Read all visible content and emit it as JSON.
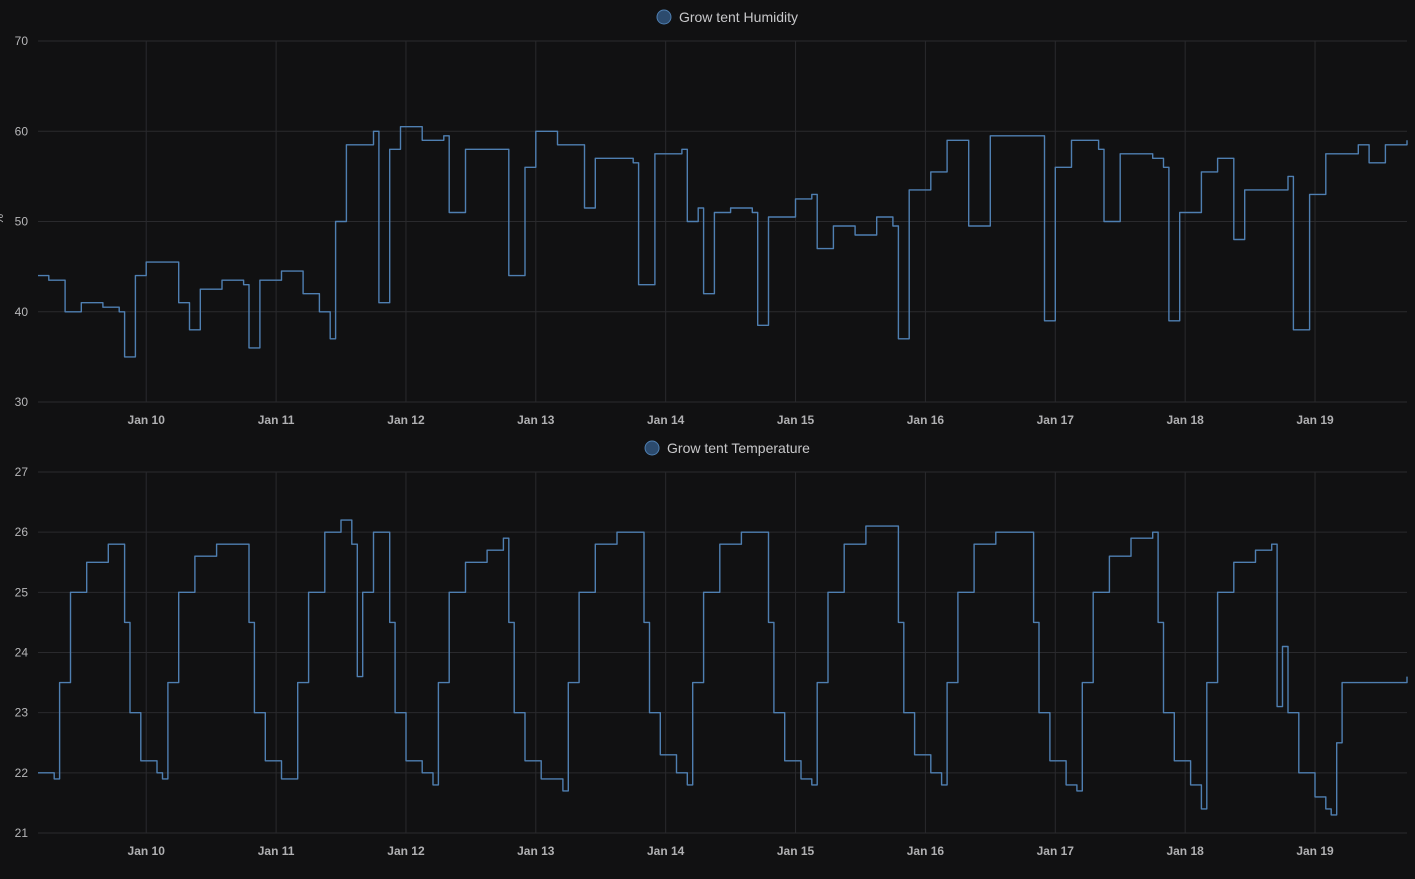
{
  "chart_data": [
    {
      "type": "line",
      "legend": "Grow tent Humidity",
      "legend_placement": "top-center",
      "ylabel": "%",
      "ylim": [
        30,
        70
      ],
      "yticks": [
        "30",
        "40",
        "50",
        "60",
        "70"
      ],
      "xlim": [
        "Jan 9 04:00",
        "Jan 19 17:00"
      ],
      "xticks": [
        "Jan 10",
        "Jan 11",
        "Jan 12",
        "Jan 13",
        "Jan 14",
        "Jan 15",
        "Jan 16",
        "Jan 17",
        "Jan 18",
        "Jan 19"
      ],
      "grid": true,
      "color": "#4f7fb1",
      "series": [
        {
          "name": "Grow tent Humidity",
          "points": [
            [
              "Jan 9 04:00",
              44.0
            ],
            [
              "Jan 9 06:00",
              43.5
            ],
            [
              "Jan 9 09:00",
              40.0
            ],
            [
              "Jan 9 12:00",
              41.0
            ],
            [
              "Jan 9 16:00",
              40.5
            ],
            [
              "Jan 9 19:00",
              40.0
            ],
            [
              "Jan 9 20:00",
              35.0
            ],
            [
              "Jan 9 22:00",
              44.0
            ],
            [
              "Jan 10 00:00",
              45.5
            ],
            [
              "Jan 10 03:00",
              45.5
            ],
            [
              "Jan 10 06:00",
              41.0
            ],
            [
              "Jan 10 08:00",
              38.0
            ],
            [
              "Jan 10 10:00",
              42.5
            ],
            [
              "Jan 10 14:00",
              43.5
            ],
            [
              "Jan 10 18:00",
              43.0
            ],
            [
              "Jan 10 19:00",
              36.0
            ],
            [
              "Jan 10 21:00",
              43.5
            ],
            [
              "Jan 11 01:00",
              44.5
            ],
            [
              "Jan 11 05:00",
              42.0
            ],
            [
              "Jan 11 08:00",
              40.0
            ],
            [
              "Jan 11 10:00",
              37.0
            ],
            [
              "Jan 11 11:00",
              50.0
            ],
            [
              "Jan 11 13:00",
              58.5
            ],
            [
              "Jan 11 18:00",
              60.0
            ],
            [
              "Jan 11 19:00",
              41.0
            ],
            [
              "Jan 11 21:00",
              58.0
            ],
            [
              "Jan 11 23:00",
              60.5
            ],
            [
              "Jan 12 03:00",
              59.0
            ],
            [
              "Jan 12 07:00",
              59.5
            ],
            [
              "Jan 12 08:00",
              51.0
            ],
            [
              "Jan 12 11:00",
              58.0
            ],
            [
              "Jan 12 18:00",
              58.0
            ],
            [
              "Jan 12 19:00",
              44.0
            ],
            [
              "Jan 12 22:00",
              56.0
            ],
            [
              "Jan 13 00:00",
              60.0
            ],
            [
              "Jan 13 04:00",
              58.5
            ],
            [
              "Jan 13 08:00",
              58.5
            ],
            [
              "Jan 13 09:00",
              51.5
            ],
            [
              "Jan 13 11:00",
              57.0
            ],
            [
              "Jan 13 18:00",
              56.5
            ],
            [
              "Jan 13 19:00",
              43.0
            ],
            [
              "Jan 13 22:00",
              57.5
            ],
            [
              "Jan 14 03:00",
              58.0
            ],
            [
              "Jan 14 04:00",
              50.0
            ],
            [
              "Jan 14 06:00",
              51.5
            ],
            [
              "Jan 14 07:00",
              42.0
            ],
            [
              "Jan 14 09:00",
              51.0
            ],
            [
              "Jan 14 12:00",
              51.5
            ],
            [
              "Jan 14 16:00",
              51.0
            ],
            [
              "Jan 14 17:00",
              38.5
            ],
            [
              "Jan 14 19:00",
              50.5
            ],
            [
              "Jan 15 00:00",
              52.5
            ],
            [
              "Jan 15 03:00",
              53.0
            ],
            [
              "Jan 15 04:00",
              47.0
            ],
            [
              "Jan 15 07:00",
              49.5
            ],
            [
              "Jan 15 11:00",
              48.5
            ],
            [
              "Jan 15 15:00",
              50.5
            ],
            [
              "Jan 15 18:00",
              49.5
            ],
            [
              "Jan 15 19:00",
              37.0
            ],
            [
              "Jan 15 21:00",
              53.5
            ],
            [
              "Jan 16 01:00",
              55.5
            ],
            [
              "Jan 16 04:00",
              59.0
            ],
            [
              "Jan 16 08:00",
              49.5
            ],
            [
              "Jan 16 12:00",
              59.5
            ],
            [
              "Jan 16 20:00",
              59.5
            ],
            [
              "Jan 16 22:00",
              39.0
            ],
            [
              "Jan 17 00:00",
              56.0
            ],
            [
              "Jan 17 03:00",
              59.0
            ],
            [
              "Jan 17 08:00",
              58.0
            ],
            [
              "Jan 17 09:00",
              50.0
            ],
            [
              "Jan 17 12:00",
              57.5
            ],
            [
              "Jan 17 18:00",
              57.0
            ],
            [
              "Jan 17 20:00",
              56.0
            ],
            [
              "Jan 17 21:00",
              39.0
            ],
            [
              "Jan 17 23:00",
              51.0
            ],
            [
              "Jan 18 03:00",
              55.5
            ],
            [
              "Jan 18 06:00",
              57.0
            ],
            [
              "Jan 18 09:00",
              48.0
            ],
            [
              "Jan 18 11:00",
              53.5
            ],
            [
              "Jan 18 16:00",
              53.5
            ],
            [
              "Jan 18 19:00",
              55.0
            ],
            [
              "Jan 18 20:00",
              38.0
            ],
            [
              "Jan 18 23:00",
              53.0
            ],
            [
              "Jan 19 02:00",
              57.5
            ],
            [
              "Jan 19 08:00",
              58.5
            ],
            [
              "Jan 19 10:00",
              56.5
            ],
            [
              "Jan 19 13:00",
              58.5
            ],
            [
              "Jan 19 17:00",
              59.0
            ]
          ]
        }
      ]
    },
    {
      "type": "line",
      "legend": "Grow tent Temperature",
      "legend_placement": "top-center",
      "ylabel": "°",
      "ylim": [
        21,
        27
      ],
      "yticks": [
        "21",
        "22",
        "23",
        "24",
        "25",
        "26",
        "27"
      ],
      "xlim": [
        "Jan 9 04:00",
        "Jan 19 17:00"
      ],
      "xticks": [
        "Jan 10",
        "Jan 11",
        "Jan 12",
        "Jan 13",
        "Jan 14",
        "Jan 15",
        "Jan 16",
        "Jan 17",
        "Jan 18",
        "Jan 19"
      ],
      "grid": true,
      "color": "#4f7fb1",
      "series": [
        {
          "name": "Grow tent Temperature",
          "points": [
            [
              "Jan 9 04:00",
              22.0
            ],
            [
              "Jan 9 07:00",
              21.9
            ],
            [
              "Jan 9 08:00",
              23.5
            ],
            [
              "Jan 9 10:00",
              25.0
            ],
            [
              "Jan 9 13:00",
              25.5
            ],
            [
              "Jan 9 17:00",
              25.8
            ],
            [
              "Jan 9 19:00",
              25.8
            ],
            [
              "Jan 9 20:00",
              24.5
            ],
            [
              "Jan 9 21:00",
              23.0
            ],
            [
              "Jan 9 23:00",
              22.2
            ],
            [
              "Jan 10 02:00",
              22.0
            ],
            [
              "Jan 10 03:00",
              21.9
            ],
            [
              "Jan 10 04:00",
              23.5
            ],
            [
              "Jan 10 06:00",
              25.0
            ],
            [
              "Jan 10 09:00",
              25.6
            ],
            [
              "Jan 10 13:00",
              25.8
            ],
            [
              "Jan 10 18:00",
              25.8
            ],
            [
              "Jan 10 19:00",
              24.5
            ],
            [
              "Jan 10 20:00",
              23.0
            ],
            [
              "Jan 10 22:00",
              22.2
            ],
            [
              "Jan 11 01:00",
              21.9
            ],
            [
              "Jan 11 03:00",
              21.9
            ],
            [
              "Jan 11 04:00",
              23.5
            ],
            [
              "Jan 11 06:00",
              25.0
            ],
            [
              "Jan 11 09:00",
              26.0
            ],
            [
              "Jan 11 12:00",
              26.2
            ],
            [
              "Jan 11 14:00",
              25.8
            ],
            [
              "Jan 11 15:00",
              23.6
            ],
            [
              "Jan 11 16:00",
              25.0
            ],
            [
              "Jan 11 18:00",
              26.0
            ],
            [
              "Jan 11 20:00",
              26.0
            ],
            [
              "Jan 11 21:00",
              24.5
            ],
            [
              "Jan 11 22:00",
              23.0
            ],
            [
              "Jan 12 00:00",
              22.2
            ],
            [
              "Jan 12 03:00",
              22.0
            ],
            [
              "Jan 12 05:00",
              21.8
            ],
            [
              "Jan 12 06:00",
              23.5
            ],
            [
              "Jan 12 08:00",
              25.0
            ],
            [
              "Jan 12 11:00",
              25.5
            ],
            [
              "Jan 12 15:00",
              25.7
            ],
            [
              "Jan 12 18:00",
              25.9
            ],
            [
              "Jan 12 19:00",
              24.5
            ],
            [
              "Jan 12 20:00",
              23.0
            ],
            [
              "Jan 12 22:00",
              22.2
            ],
            [
              "Jan 13 01:00",
              21.9
            ],
            [
              "Jan 13 05:00",
              21.7
            ],
            [
              "Jan 13 06:00",
              23.5
            ],
            [
              "Jan 13 08:00",
              25.0
            ],
            [
              "Jan 13 11:00",
              25.8
            ],
            [
              "Jan 13 15:00",
              26.0
            ],
            [
              "Jan 13 19:00",
              26.0
            ],
            [
              "Jan 13 20:00",
              24.5
            ],
            [
              "Jan 13 21:00",
              23.0
            ],
            [
              "Jan 13 23:00",
              22.3
            ],
            [
              "Jan 14 02:00",
              22.0
            ],
            [
              "Jan 14 04:00",
              21.8
            ],
            [
              "Jan 14 05:00",
              23.5
            ],
            [
              "Jan 14 07:00",
              25.0
            ],
            [
              "Jan 14 10:00",
              25.8
            ],
            [
              "Jan 14 14:00",
              26.0
            ],
            [
              "Jan 14 18:00",
              26.0
            ],
            [
              "Jan 14 19:00",
              24.5
            ],
            [
              "Jan 14 20:00",
              23.0
            ],
            [
              "Jan 14 22:00",
              22.2
            ],
            [
              "Jan 15 01:00",
              21.9
            ],
            [
              "Jan 15 03:00",
              21.8
            ],
            [
              "Jan 15 04:00",
              23.5
            ],
            [
              "Jan 15 06:00",
              25.0
            ],
            [
              "Jan 15 09:00",
              25.8
            ],
            [
              "Jan 15 13:00",
              26.1
            ],
            [
              "Jan 15 17:00",
              26.1
            ],
            [
              "Jan 15 19:00",
              24.5
            ],
            [
              "Jan 15 20:00",
              23.0
            ],
            [
              "Jan 15 22:00",
              22.3
            ],
            [
              "Jan 16 01:00",
              22.0
            ],
            [
              "Jan 16 03:00",
              21.8
            ],
            [
              "Jan 16 04:00",
              23.5
            ],
            [
              "Jan 16 06:00",
              25.0
            ],
            [
              "Jan 16 09:00",
              25.8
            ],
            [
              "Jan 16 13:00",
              26.0
            ],
            [
              "Jan 16 19:00",
              26.0
            ],
            [
              "Jan 16 20:00",
              24.5
            ],
            [
              "Jan 16 21:00",
              23.0
            ],
            [
              "Jan 16 23:00",
              22.2
            ],
            [
              "Jan 17 02:00",
              21.8
            ],
            [
              "Jan 17 04:00",
              21.7
            ],
            [
              "Jan 17 05:00",
              23.5
            ],
            [
              "Jan 17 07:00",
              25.0
            ],
            [
              "Jan 17 10:00",
              25.6
            ],
            [
              "Jan 17 14:00",
              25.9
            ],
            [
              "Jan 17 18:00",
              26.0
            ],
            [
              "Jan 17 19:00",
              24.5
            ],
            [
              "Jan 17 20:00",
              23.0
            ],
            [
              "Jan 17 22:00",
              22.2
            ],
            [
              "Jan 18 01:00",
              21.8
            ],
            [
              "Jan 18 03:00",
              21.4
            ],
            [
              "Jan 18 04:00",
              23.5
            ],
            [
              "Jan 18 06:00",
              25.0
            ],
            [
              "Jan 18 09:00",
              25.5
            ],
            [
              "Jan 18 13:00",
              25.7
            ],
            [
              "Jan 18 16:00",
              25.8
            ],
            [
              "Jan 18 17:00",
              23.1
            ],
            [
              "Jan 18 18:00",
              24.1
            ],
            [
              "Jan 18 19:00",
              23.0
            ],
            [
              "Jan 18 21:00",
              22.0
            ],
            [
              "Jan 19 00:00",
              21.6
            ],
            [
              "Jan 19 02:00",
              21.4
            ],
            [
              "Jan 19 03:00",
              21.3
            ],
            [
              "Jan 19 04:00",
              22.5
            ],
            [
              "Jan 19 05:00",
              23.5
            ],
            [
              "Jan 19 17:00",
              23.6
            ]
          ]
        }
      ]
    }
  ]
}
